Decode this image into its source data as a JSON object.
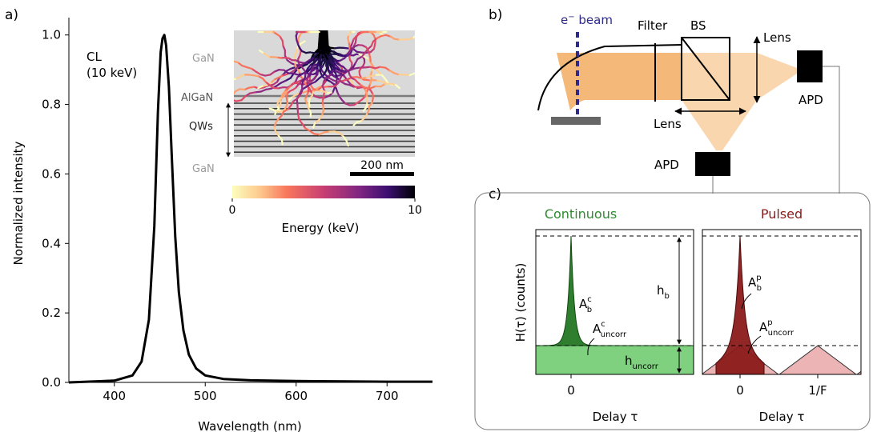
{
  "panels": {
    "a": "a)",
    "b": "b)",
    "c": "c)"
  },
  "colors": {
    "orange_beam": "#f4b878",
    "orange_light": "#f9d6ad",
    "beam_blue": "#2e2a8a",
    "continuous_green": "#2e8b2e",
    "pulsed_red": "#8b1a1a",
    "green_fill": "#7fd07f",
    "pink_fill": "#ecb4b4"
  },
  "chart_data": {
    "type": "line",
    "xlabel": "Wavelength (nm)",
    "ylabel": "Normalized intensity",
    "xlim": [
      350,
      750
    ],
    "ylim": [
      0,
      1.05
    ],
    "x_ticks": [
      "400",
      "500",
      "600",
      "700"
    ],
    "y_ticks": [
      "0.0",
      "0.2",
      "0.4",
      "0.6",
      "0.8",
      "1.0"
    ],
    "peak_wavelength_nm": 455,
    "annotation": [
      "CL",
      "(10 keV)"
    ],
    "series": [
      {
        "x": [
          350,
          400,
          420,
          430,
          438,
          444,
          448,
          451,
          453,
          455,
          457,
          460,
          463,
          467,
          471,
          476,
          482,
          490,
          500,
          520,
          550,
          600,
          700,
          750
        ],
        "y": [
          0.0,
          0.005,
          0.02,
          0.06,
          0.18,
          0.45,
          0.78,
          0.95,
          0.99,
          1.0,
          0.97,
          0.85,
          0.66,
          0.42,
          0.26,
          0.15,
          0.08,
          0.04,
          0.02,
          0.01,
          0.006,
          0.004,
          0.002,
          0.002
        ]
      }
    ]
  },
  "inset": {
    "layers": {
      "gan_top": "GaN",
      "algan": "AlGaN",
      "qws": "QWs",
      "gan_bottom": "GaN"
    },
    "scalebar": "200 nm",
    "colorbar": {
      "label": "Energy (keV)",
      "min": "0",
      "max": "10",
      "colormap": "magma"
    }
  },
  "setup": {
    "ebeam": "e",
    "ebeam_sup": "−",
    "ebeam_rest": " beam",
    "filter": "Filter",
    "bs": "BS",
    "lens_right": "Lens",
    "lens_bottom": "Lens",
    "apd_right": "APD",
    "apd_bottom": "APD"
  },
  "hbt": {
    "ylabel": "H(τ)  (counts)",
    "continuous": {
      "title": "Continuous",
      "xtick": "0",
      "xlabel": "Delay τ",
      "A_b": "A",
      "A_b_sup": "c",
      "A_b_sub": "b",
      "A_uncorr": "A",
      "A_uncorr_sup": "c",
      "A_uncorr_sub": "uncorr",
      "h_b": "h",
      "h_b_sub": "b",
      "h_uncorr": "h",
      "h_uncorr_sub": "uncorr"
    },
    "pulsed": {
      "title": "Pulsed",
      "xticks": [
        "0",
        "1/F"
      ],
      "xlabel": "Delay τ",
      "A_b": "A",
      "A_b_sup": "p",
      "A_b_sub": "b",
      "A_uncorr": "A",
      "A_uncorr_sup": "p",
      "A_uncorr_sub": "uncorr"
    }
  }
}
